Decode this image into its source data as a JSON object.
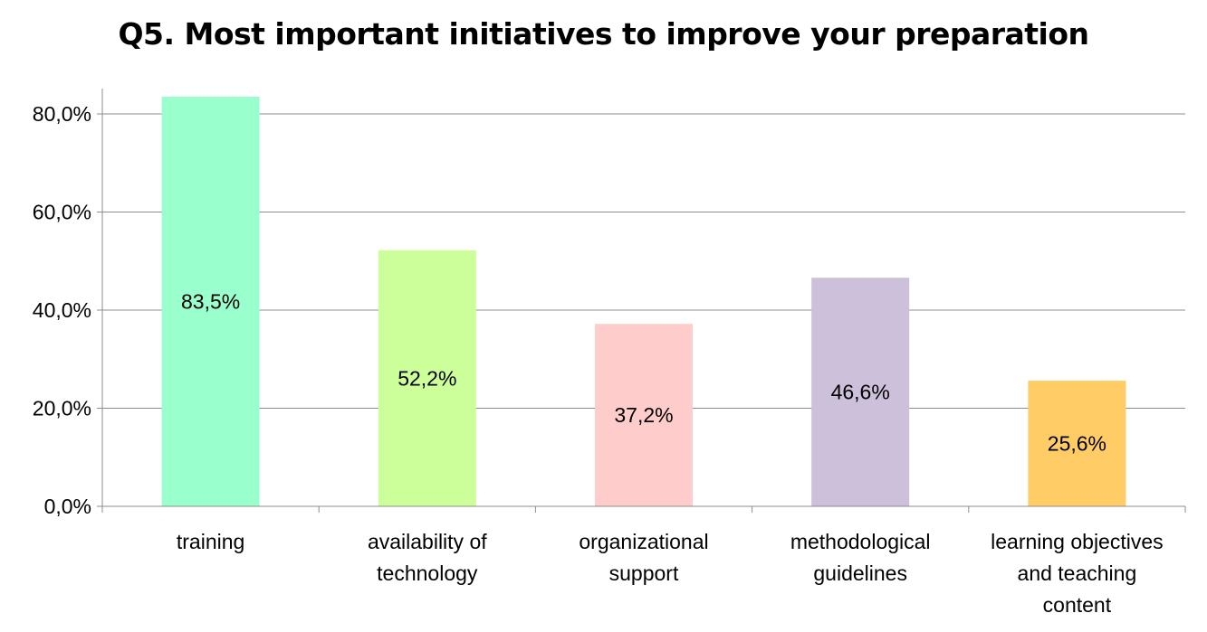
{
  "chart_data": {
    "type": "bar",
    "title": "Q5. Most important initiatives to improve your preparation",
    "categories": [
      [
        "training"
      ],
      [
        "availability of",
        "technology"
      ],
      [
        "organizational",
        "support"
      ],
      [
        "methodological",
        "guidelines"
      ],
      [
        "learning objectives",
        "and teaching",
        "content"
      ]
    ],
    "values": [
      83.5,
      52.2,
      37.2,
      46.6,
      25.6
    ],
    "data_labels": [
      "83,5%",
      "52,2%",
      "37,2%",
      "46,6%",
      "25,6%"
    ],
    "bar_colors": [
      "#99FFCC",
      "#CCFF99",
      "#FFCCCC",
      "#CCC0DA",
      "#FFCC66"
    ],
    "ylim": [
      0,
      80
    ],
    "yticks": [
      0,
      20,
      40,
      60,
      80
    ],
    "ytick_labels": [
      "0,0%",
      "20,0%",
      "40,0%",
      "60,0%",
      "80,0%"
    ],
    "grid": true,
    "legend": "none",
    "xlabel": "",
    "ylabel": ""
  }
}
